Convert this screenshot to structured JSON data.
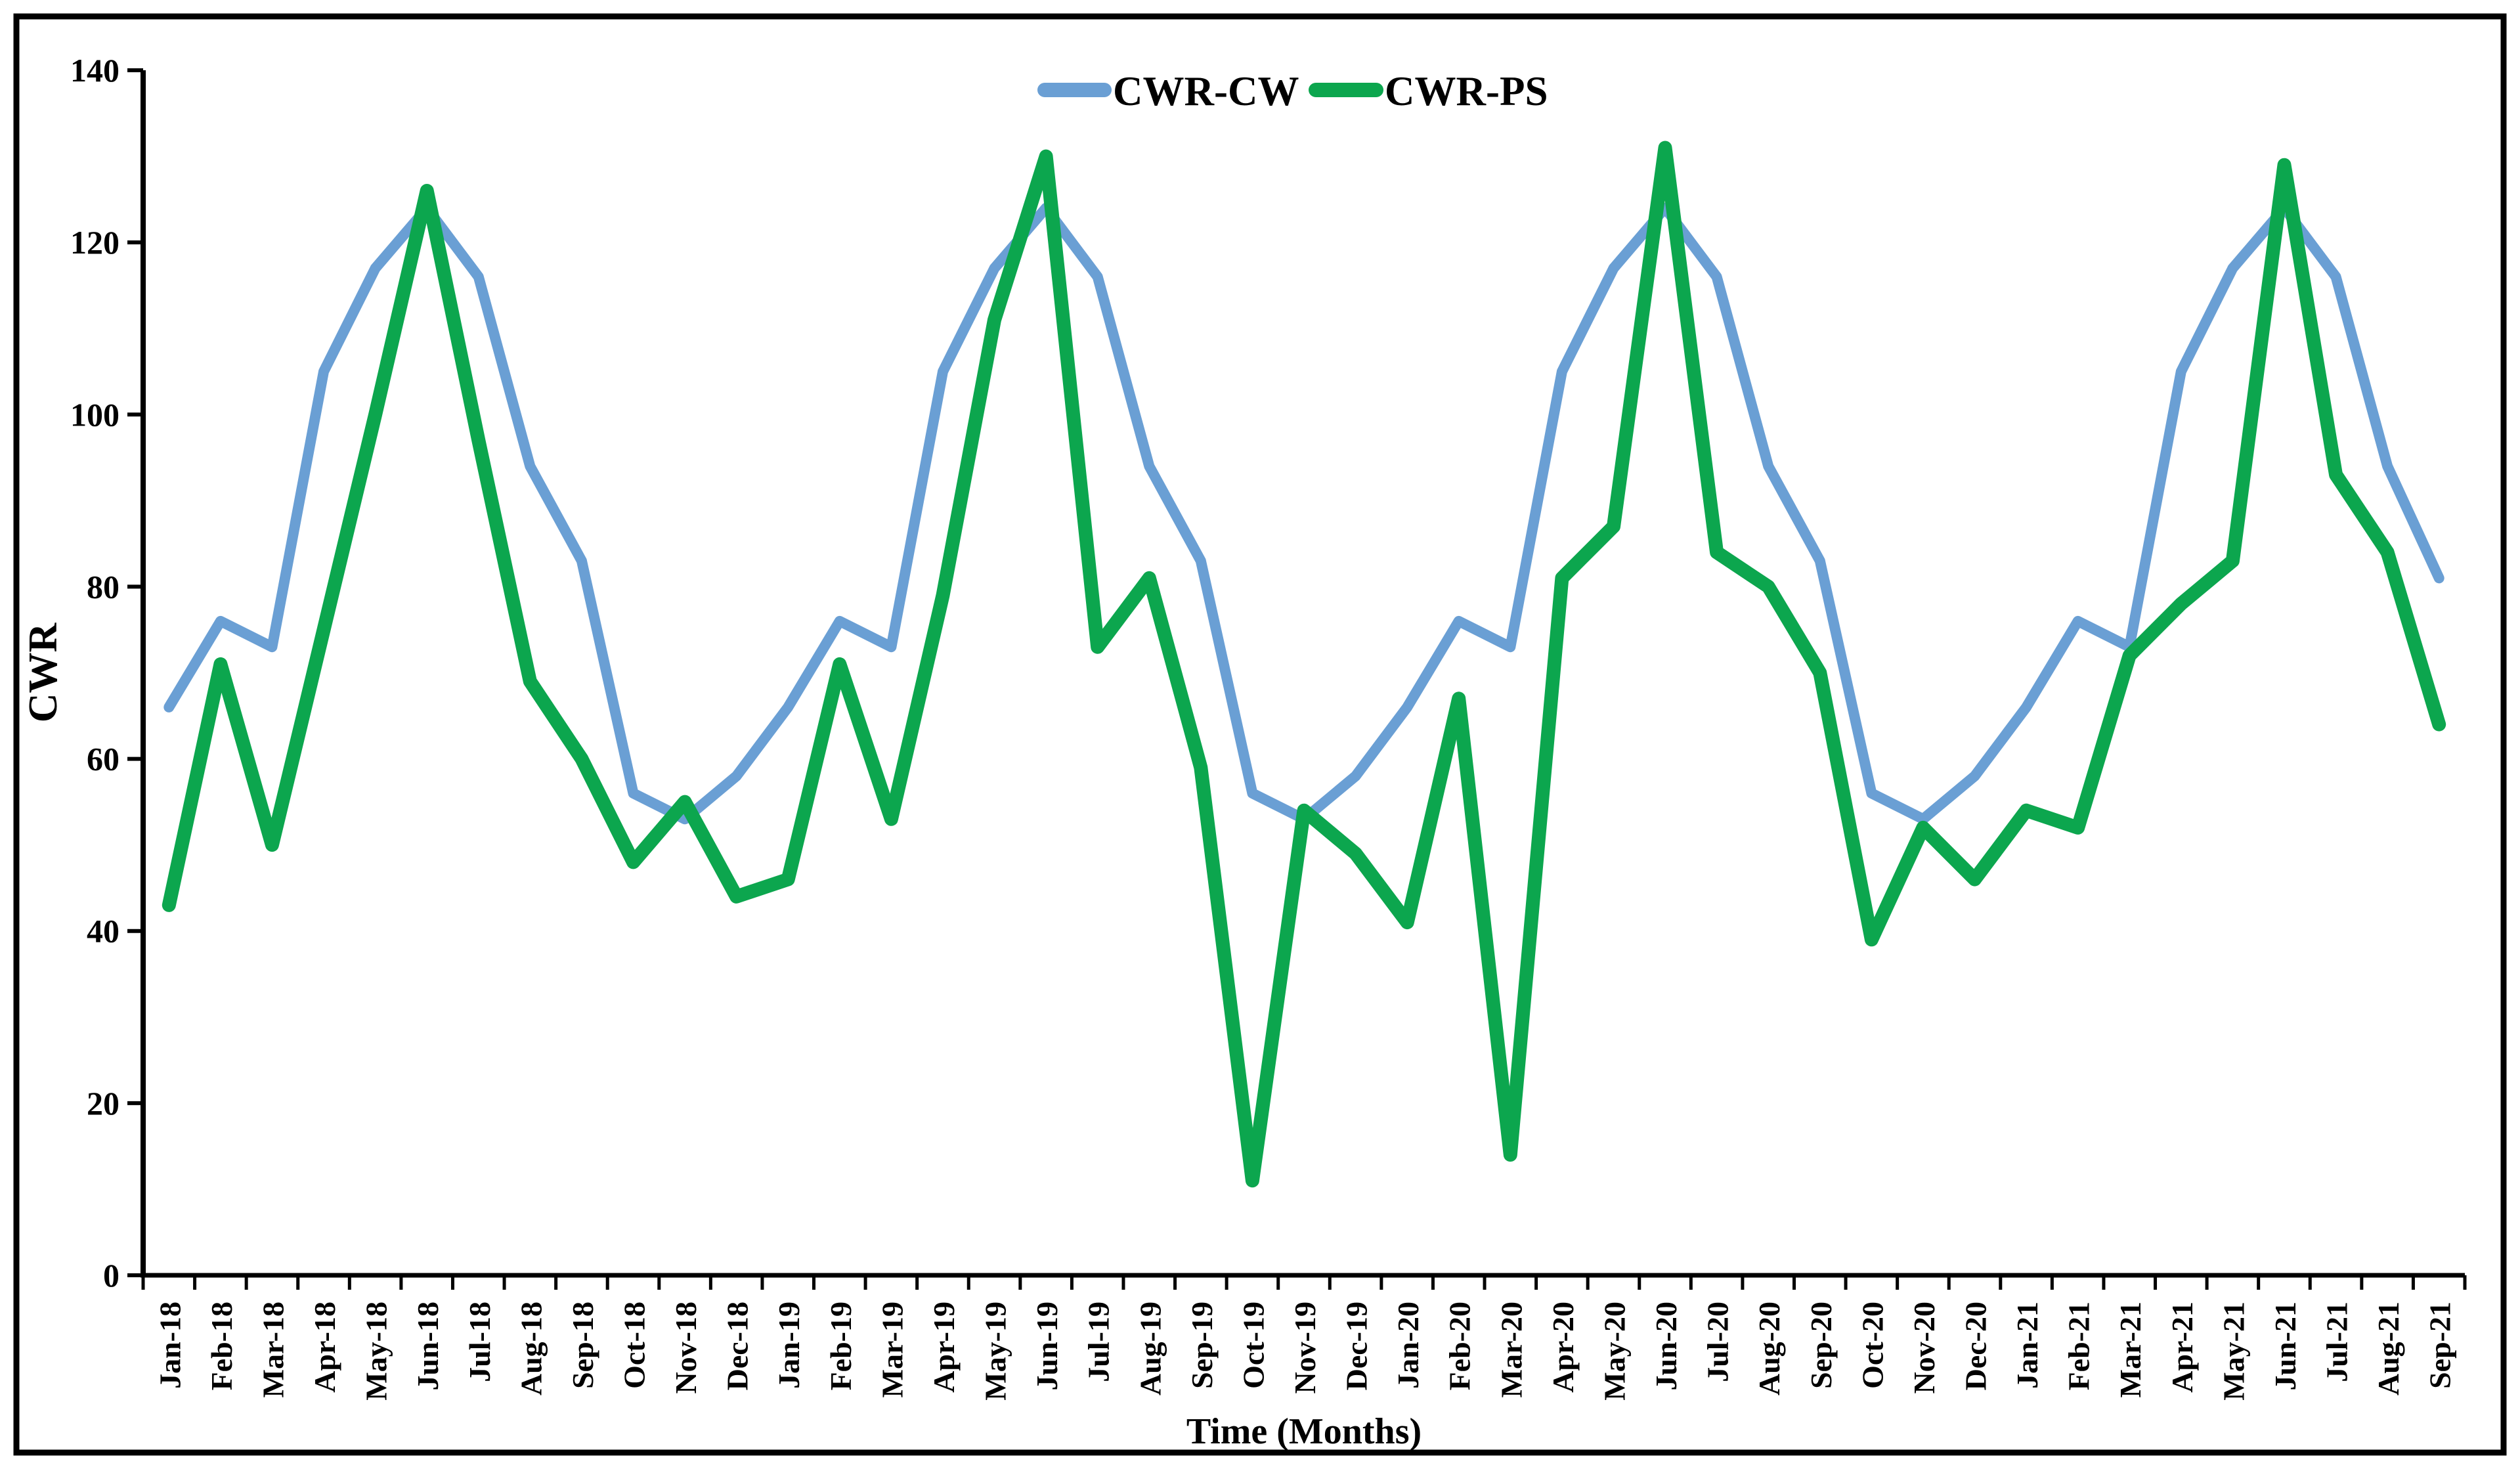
{
  "window": {
    "background": "#ffffff",
    "frame_border_color": "#000000"
  },
  "chart_data": {
    "type": "line",
    "title": "",
    "xlabel": "Time (Months)",
    "ylabel": "CWR",
    "ylim": [
      0,
      140
    ],
    "yticks": [
      0,
      20,
      40,
      60,
      80,
      100,
      120,
      140
    ],
    "grid": false,
    "legend_position": "top-center",
    "axis_color": "#000000",
    "categories": [
      "Jan-18",
      "Feb-18",
      "Mar-18",
      "Apr-18",
      "May-18",
      "Jun-18",
      "Jul-18",
      "Aug-18",
      "Sep-18",
      "Oct-18",
      "Nov-18",
      "Dec-18",
      "Jan-19",
      "Feb-19",
      "Mar-19",
      "Apr-19",
      "May-19",
      "Jun-19",
      "Jul-19",
      "Aug-19",
      "Sep-19",
      "Oct-19",
      "Nov-19",
      "Dec-19",
      "Jan-20",
      "Feb-20",
      "Mar-20",
      "Apr-20",
      "May-20",
      "Jun-20",
      "Jul-20",
      "Aug-20",
      "Sep-20",
      "Oct-20",
      "Nov-20",
      "Dec-20",
      "Jan-21",
      "Feb-21",
      "Mar-21",
      "Apr-21",
      "May-21",
      "Jun-21",
      "Jul-21",
      "Aug-21",
      "Sep-21"
    ],
    "series": [
      {
        "name": "CWR-CW",
        "color": "#6A9FD4",
        "line_width": 16,
        "values": [
          66,
          76,
          73,
          105,
          117,
          124,
          116,
          94,
          83,
          56,
          53,
          58,
          66,
          76,
          73,
          105,
          117,
          124,
          116,
          94,
          83,
          56,
          53,
          58,
          66,
          76,
          73,
          105,
          117,
          124,
          116,
          94,
          83,
          56,
          53,
          58,
          66,
          76,
          73,
          105,
          117,
          124,
          116,
          94,
          81
        ]
      },
      {
        "name": "CWR-PS",
        "color": "#0CA64E",
        "line_width": 21,
        "values": [
          43,
          71,
          50,
          75,
          100,
          126,
          97,
          69,
          60,
          48,
          55,
          44,
          46,
          71,
          53,
          79,
          111,
          130,
          73,
          81,
          59,
          11,
          54,
          49,
          41,
          67,
          14,
          81,
          87,
          131,
          84,
          80,
          70,
          39,
          52,
          46,
          54,
          52,
          72,
          78,
          83,
          129,
          93,
          84,
          64
        ]
      }
    ]
  }
}
